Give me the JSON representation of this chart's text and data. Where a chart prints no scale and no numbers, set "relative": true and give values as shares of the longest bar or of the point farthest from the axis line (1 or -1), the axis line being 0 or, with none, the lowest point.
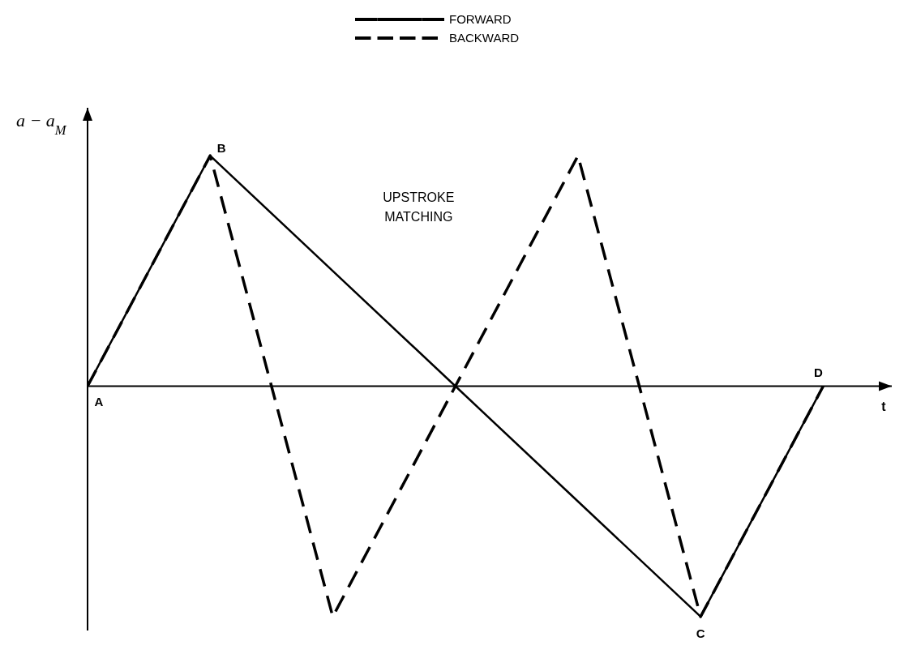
{
  "chart_data": {
    "type": "line",
    "relative": true,
    "xlabel": "t",
    "ylabel": "a − a$_{M}$",
    "legend": "top",
    "categories": [
      null,
      null,
      null,
      null,
      null,
      null,
      null
    ],
    "annotations": [
      "A",
      "B",
      "C",
      "D",
      "UPSTROKE\nMATCHING"
    ],
    "series": [
      {
        "name": "FORWARD",
        "color": "#000000",
        "line_style": "solid",
        "values": [
          0,
          1,
          0.5,
          0,
          -0.5,
          -1,
          0
        ]
      },
      {
        "name": "BACKWARD",
        "color": "#000000",
        "line_style": "dashed",
        "values": [
          0,
          1,
          -1,
          0,
          1,
          -1,
          0
        ]
      }
    ]
  }
}
